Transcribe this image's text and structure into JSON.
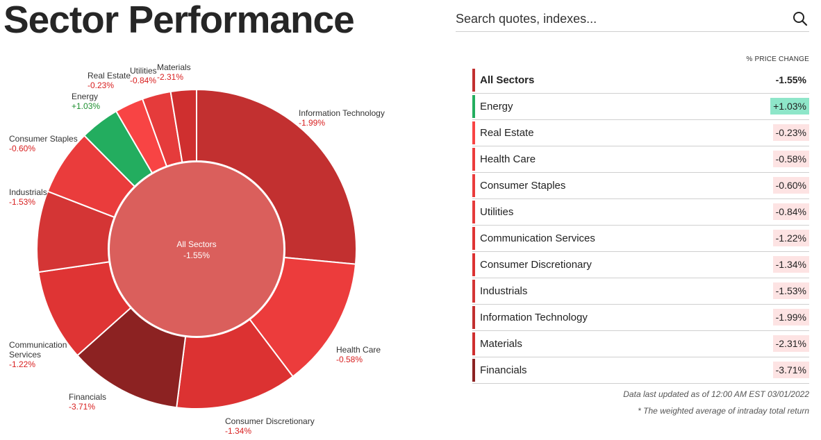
{
  "page": {
    "title": "Sector Performance"
  },
  "search": {
    "placeholder": "Search quotes, indexes..."
  },
  "colors": {
    "inner": "#da5f5c",
    "positive": "#23ad5f",
    "positive_badge": "#8ee6c9",
    "negative_badge": "#fde3e3",
    "label_negative": "#d81e1e",
    "label_positive": "#1d8f2f"
  },
  "chart_data": {
    "type": "pie",
    "center": {
      "name": "All Sectors",
      "value": "-1.55%"
    },
    "slices": [
      {
        "name": "Information Technology",
        "value": "-1.99%",
        "weight": 26.5,
        "color": "#c23030"
      },
      {
        "name": "Health Care",
        "value": "-0.58%",
        "weight": 13.2,
        "color": "#ec3c3c"
      },
      {
        "name": "Consumer Discretionary",
        "value": "-1.34%",
        "weight": 12.3,
        "color": "#dc3232"
      },
      {
        "name": "Financials",
        "value": "-3.71%",
        "weight": 11.4,
        "color": "#8c2222"
      },
      {
        "name": "Communication Services",
        "value": "-1.22%",
        "weight": 9.3,
        "color": "#df3434"
      },
      {
        "name": "Industrials",
        "value": "-1.53%",
        "weight": 8.2,
        "color": "#d43535"
      },
      {
        "name": "Consumer Staples",
        "value": "-0.60%",
        "weight": 6.7,
        "color": "#ea3c3c"
      },
      {
        "name": "Energy",
        "value": "+1.03%",
        "weight": 4.0,
        "color": "#23ad5f"
      },
      {
        "name": "Real Estate",
        "value": "-0.23%",
        "weight": 2.9,
        "color": "#f84444"
      },
      {
        "name": "Utilities",
        "value": "-0.84%",
        "weight": 2.9,
        "color": "#e53b3b"
      },
      {
        "name": "Materials",
        "value": "-2.31%",
        "weight": 2.6,
        "color": "#cf2f2f"
      }
    ]
  },
  "table": {
    "column_header": "% PRICE CHANGE",
    "rows": [
      {
        "name": "All Sectors",
        "value": "-1.55%",
        "bar": "#c23030"
      },
      {
        "name": "Energy",
        "value": "+1.03%",
        "bar": "#23ad5f"
      },
      {
        "name": "Real Estate",
        "value": "-0.23%",
        "bar": "#f84444"
      },
      {
        "name": "Health Care",
        "value": "-0.58%",
        "bar": "#ec3c3c"
      },
      {
        "name": "Consumer Staples",
        "value": "-0.60%",
        "bar": "#ea3c3c"
      },
      {
        "name": "Utilities",
        "value": "-0.84%",
        "bar": "#e53b3b"
      },
      {
        "name": "Communication Services",
        "value": "-1.22%",
        "bar": "#df3434"
      },
      {
        "name": "Consumer Discretionary",
        "value": "-1.34%",
        "bar": "#dc3232"
      },
      {
        "name": "Industrials",
        "value": "-1.53%",
        "bar": "#d43535"
      },
      {
        "name": "Information Technology",
        "value": "-1.99%",
        "bar": "#c23030"
      },
      {
        "name": "Materials",
        "value": "-2.31%",
        "bar": "#cf2f2f"
      },
      {
        "name": "Financials",
        "value": "-3.71%",
        "bar": "#8c2222"
      }
    ]
  },
  "footer": {
    "updated": "Data last updated as of 12:00 AM EST 03/01/2022",
    "note": "* The weighted average of intraday total return"
  }
}
